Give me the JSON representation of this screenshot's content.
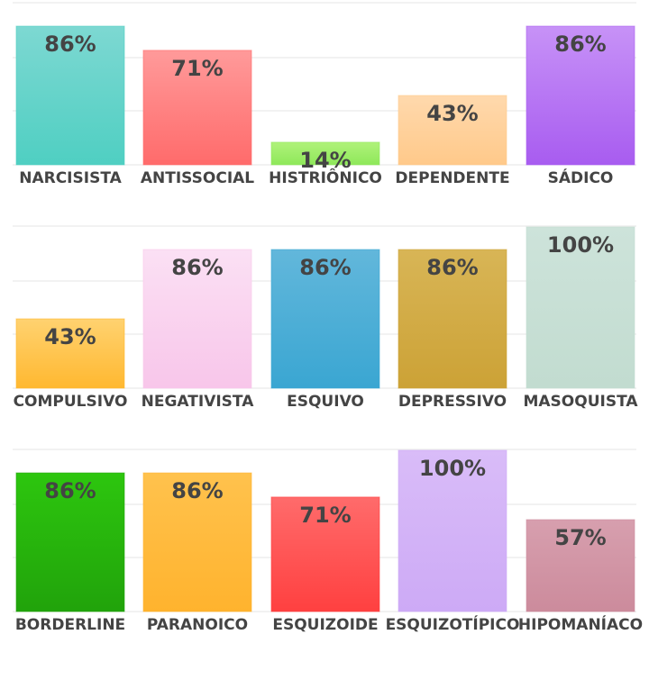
{
  "chart_data": [
    {
      "type": "bar",
      "categories": [
        "NARCISISTA",
        "ANTISSOCIAL",
        "HISTRIÔNICO",
        "DEPENDENTE",
        "SÁDICO"
      ],
      "values": [
        86,
        71,
        14,
        43,
        86
      ],
      "value_labels": [
        "86%",
        "71%",
        "14%",
        "43%",
        "86%"
      ],
      "colors": [
        [
          "#7dd8d2",
          "#4fcfc2"
        ],
        [
          "#ff9a9a",
          "#ff6b6b"
        ],
        [
          "#b0f27a",
          "#8ee85a"
        ],
        [
          "#ffd9ad",
          "#ffc98a"
        ],
        [
          "#c792f7",
          "#a85cf0"
        ]
      ],
      "ylim": [
        0,
        100
      ],
      "grid": true
    },
    {
      "type": "bar",
      "categories": [
        "COMPULSIVO",
        "NEGATIVISTA",
        "ESQUIVO",
        "DEPRESSIVO",
        "MASOQUISTA"
      ],
      "values": [
        43,
        86,
        86,
        86,
        100
      ],
      "value_labels": [
        "43%",
        "86%",
        "86%",
        "86%",
        "100%"
      ],
      "colors": [
        [
          "#ffd270",
          "#ffb830"
        ],
        [
          "#fbe0f4",
          "#f8c6ea"
        ],
        [
          "#62b7db",
          "#3aa6d2"
        ],
        [
          "#d8b556",
          "#cca236"
        ],
        [
          "#cde3da",
          "#c2dcd0"
        ]
      ],
      "ylim": [
        0,
        100
      ],
      "grid": true
    },
    {
      "type": "bar",
      "categories": [
        "BORDERLINE",
        "PARANOICO",
        "ESQUIZOIDE",
        "ESQUIZOTÍPICO",
        "HIPOMANÍACO"
      ],
      "values": [
        86,
        86,
        71,
        100,
        57
      ],
      "value_labels": [
        "86%",
        "86%",
        "71%",
        "100%",
        "57%"
      ],
      "colors": [
        [
          "#2dc60e",
          "#21a30b"
        ],
        [
          "#ffc24d",
          "#ffb32e"
        ],
        [
          "#ff6b6b",
          "#ff4040"
        ],
        [
          "#d9bcf8",
          "#cdaaf6"
        ],
        [
          "#d79fae",
          "#cc8b9c"
        ]
      ],
      "ylim": [
        0,
        100
      ],
      "grid": true
    }
  ]
}
